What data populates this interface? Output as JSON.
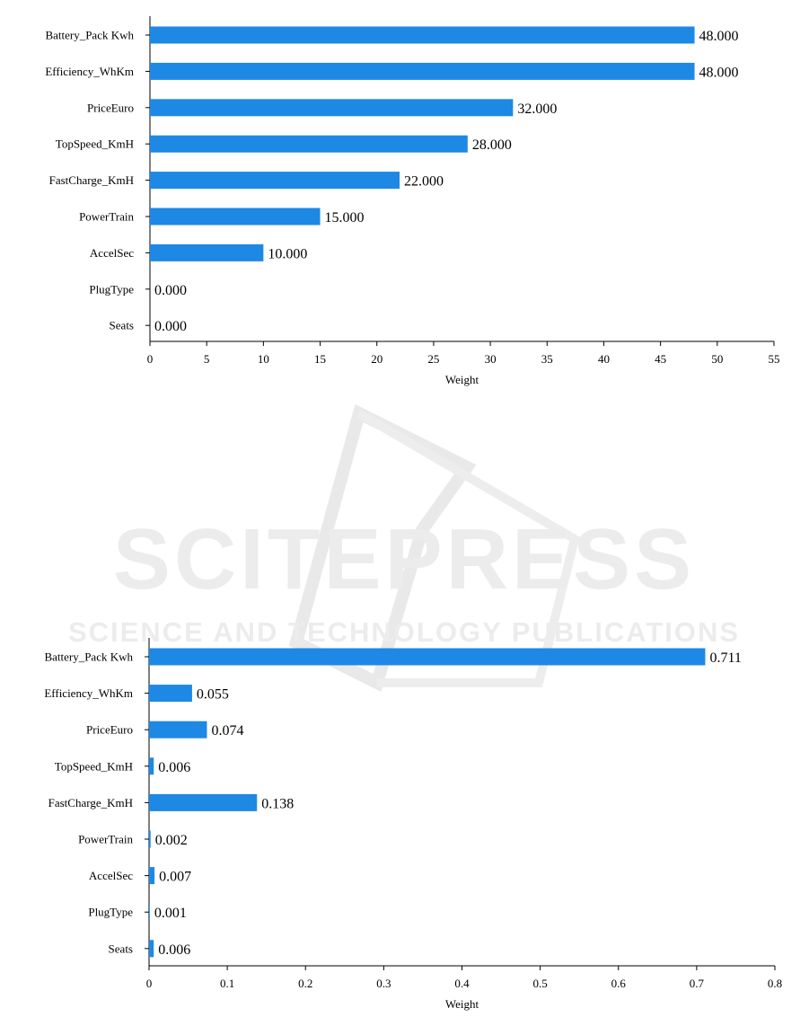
{
  "watermark": {
    "brand": "SCITEPRESS",
    "tagline": "SCIENCE AND TECHNOLOGY PUBLICATIONS"
  },
  "chart_data": [
    {
      "type": "bar",
      "orientation": "horizontal",
      "categories": [
        "Battery_Pack Kwh",
        "Efficiency_WhKm",
        "PriceEuro",
        "TopSpeed_KmH",
        "FastCharge_KmH",
        "PowerTrain",
        "AccelSec",
        "PlugType",
        "Seats"
      ],
      "values": [
        48,
        48,
        32,
        28,
        22,
        15,
        10,
        0,
        0
      ],
      "value_labels": [
        "48.000",
        "48.000",
        "32.000",
        "28.000",
        "22.000",
        "15.000",
        "10.000",
        "0.000",
        "0.000"
      ],
      "xlabel": "Weight",
      "ylabel": "",
      "xlim": [
        0,
        55
      ],
      "xticks": [
        0,
        5,
        10,
        15,
        20,
        25,
        30,
        35,
        40,
        45,
        50,
        55
      ],
      "xtick_labels": [
        "0",
        "5",
        "10",
        "15",
        "20",
        "25",
        "30",
        "35",
        "40",
        "45",
        "50",
        "55"
      ],
      "bar_color": "#1e88e5",
      "grid": false
    },
    {
      "type": "bar",
      "orientation": "horizontal",
      "categories": [
        "Battery_Pack Kwh",
        "Efficiency_WhKm",
        "PriceEuro",
        "TopSpeed_KmH",
        "FastCharge_KmH",
        "PowerTrain",
        "AccelSec",
        "PlugType",
        "Seats"
      ],
      "values": [
        0.711,
        0.055,
        0.074,
        0.006,
        0.138,
        0.002,
        0.007,
        0.001,
        0.006
      ],
      "value_labels": [
        "0.711",
        "0.055",
        "0.074",
        "0.006",
        "0.138",
        "0.002",
        "0.007",
        "0.001",
        "0.006"
      ],
      "xlabel": "Weight",
      "ylabel": "",
      "xlim": [
        0,
        0.8
      ],
      "xticks": [
        0,
        0.1,
        0.2,
        0.3,
        0.4,
        0.5,
        0.6,
        0.7,
        0.8
      ],
      "xtick_labels": [
        "0",
        "0.1",
        "0.2",
        "0.3",
        "0.4",
        "0.5",
        "0.6",
        "0.7",
        "0.8"
      ],
      "bar_color": "#1e88e5",
      "grid": false
    }
  ]
}
